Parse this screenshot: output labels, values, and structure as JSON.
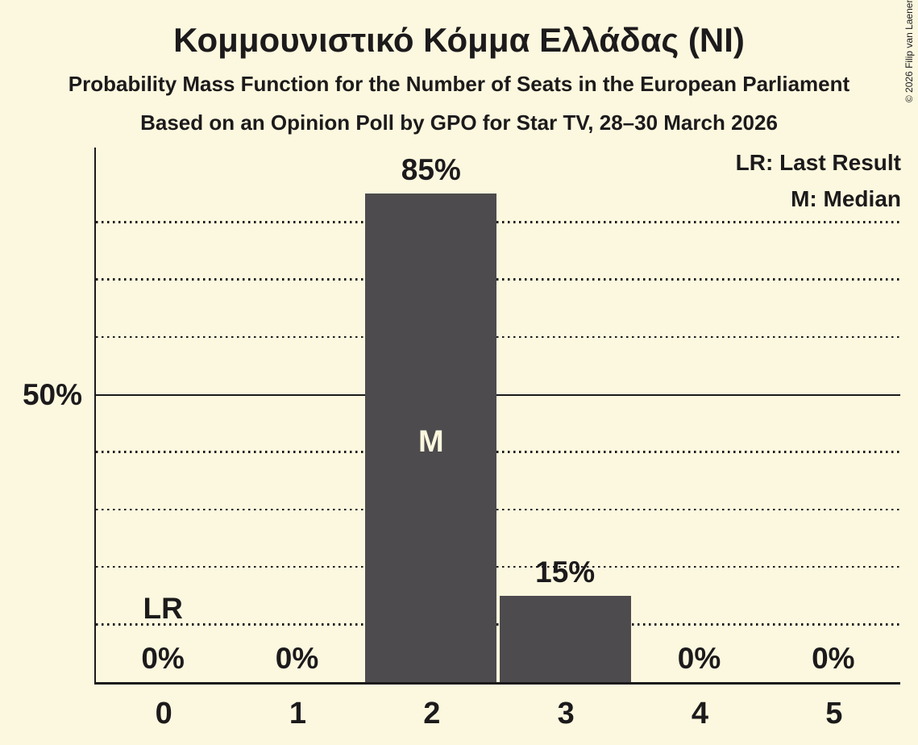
{
  "page": {
    "background_color": "#fcf8df",
    "text_color": "#1c1a1b"
  },
  "header": {
    "title": "Κομμουνιστικό Κόμμα Ελλάδας (NI)",
    "subtitle_line1": "Probability Mass Function for the Number of Seats in the European Parliament",
    "subtitle_line2": "Based on an Opinion Poll by GPO for Star TV, 28–30 March 2026"
  },
  "copyright_notice": "© 2026 Filip van Laenen",
  "legend": {
    "lr_label": "LR: Last Result",
    "m_label": "M: Median"
  },
  "chart_data": {
    "type": "bar",
    "title": "Κομμουνιστικό Κόμμα Ελλάδας (NI)",
    "categories": [
      "0",
      "1",
      "2",
      "3",
      "4",
      "5"
    ],
    "values": [
      0,
      0,
      85,
      15,
      0,
      0
    ],
    "value_labels": [
      "0%",
      "0%",
      "85%",
      "15%",
      "0%",
      "0%"
    ],
    "xlabel": "",
    "ylabel": "",
    "ylim": [
      0,
      93
    ],
    "y_solid_gridline": 50,
    "y_solid_gridline_label": "50%",
    "y_dotted_gridlines": [
      10,
      20,
      30,
      40,
      60,
      70,
      80
    ],
    "grid": "dotted-horizontal",
    "legend_position": "top-right",
    "median_category_index": 2,
    "median_marker_label": "M",
    "last_result_category_index": 0,
    "last_result_marker_label": "LR",
    "bar_color": "#4d4b4d",
    "bar_label_color": "#fcf8df",
    "background_color": "#fcf8df",
    "text_color": "#1c1a1b"
  }
}
